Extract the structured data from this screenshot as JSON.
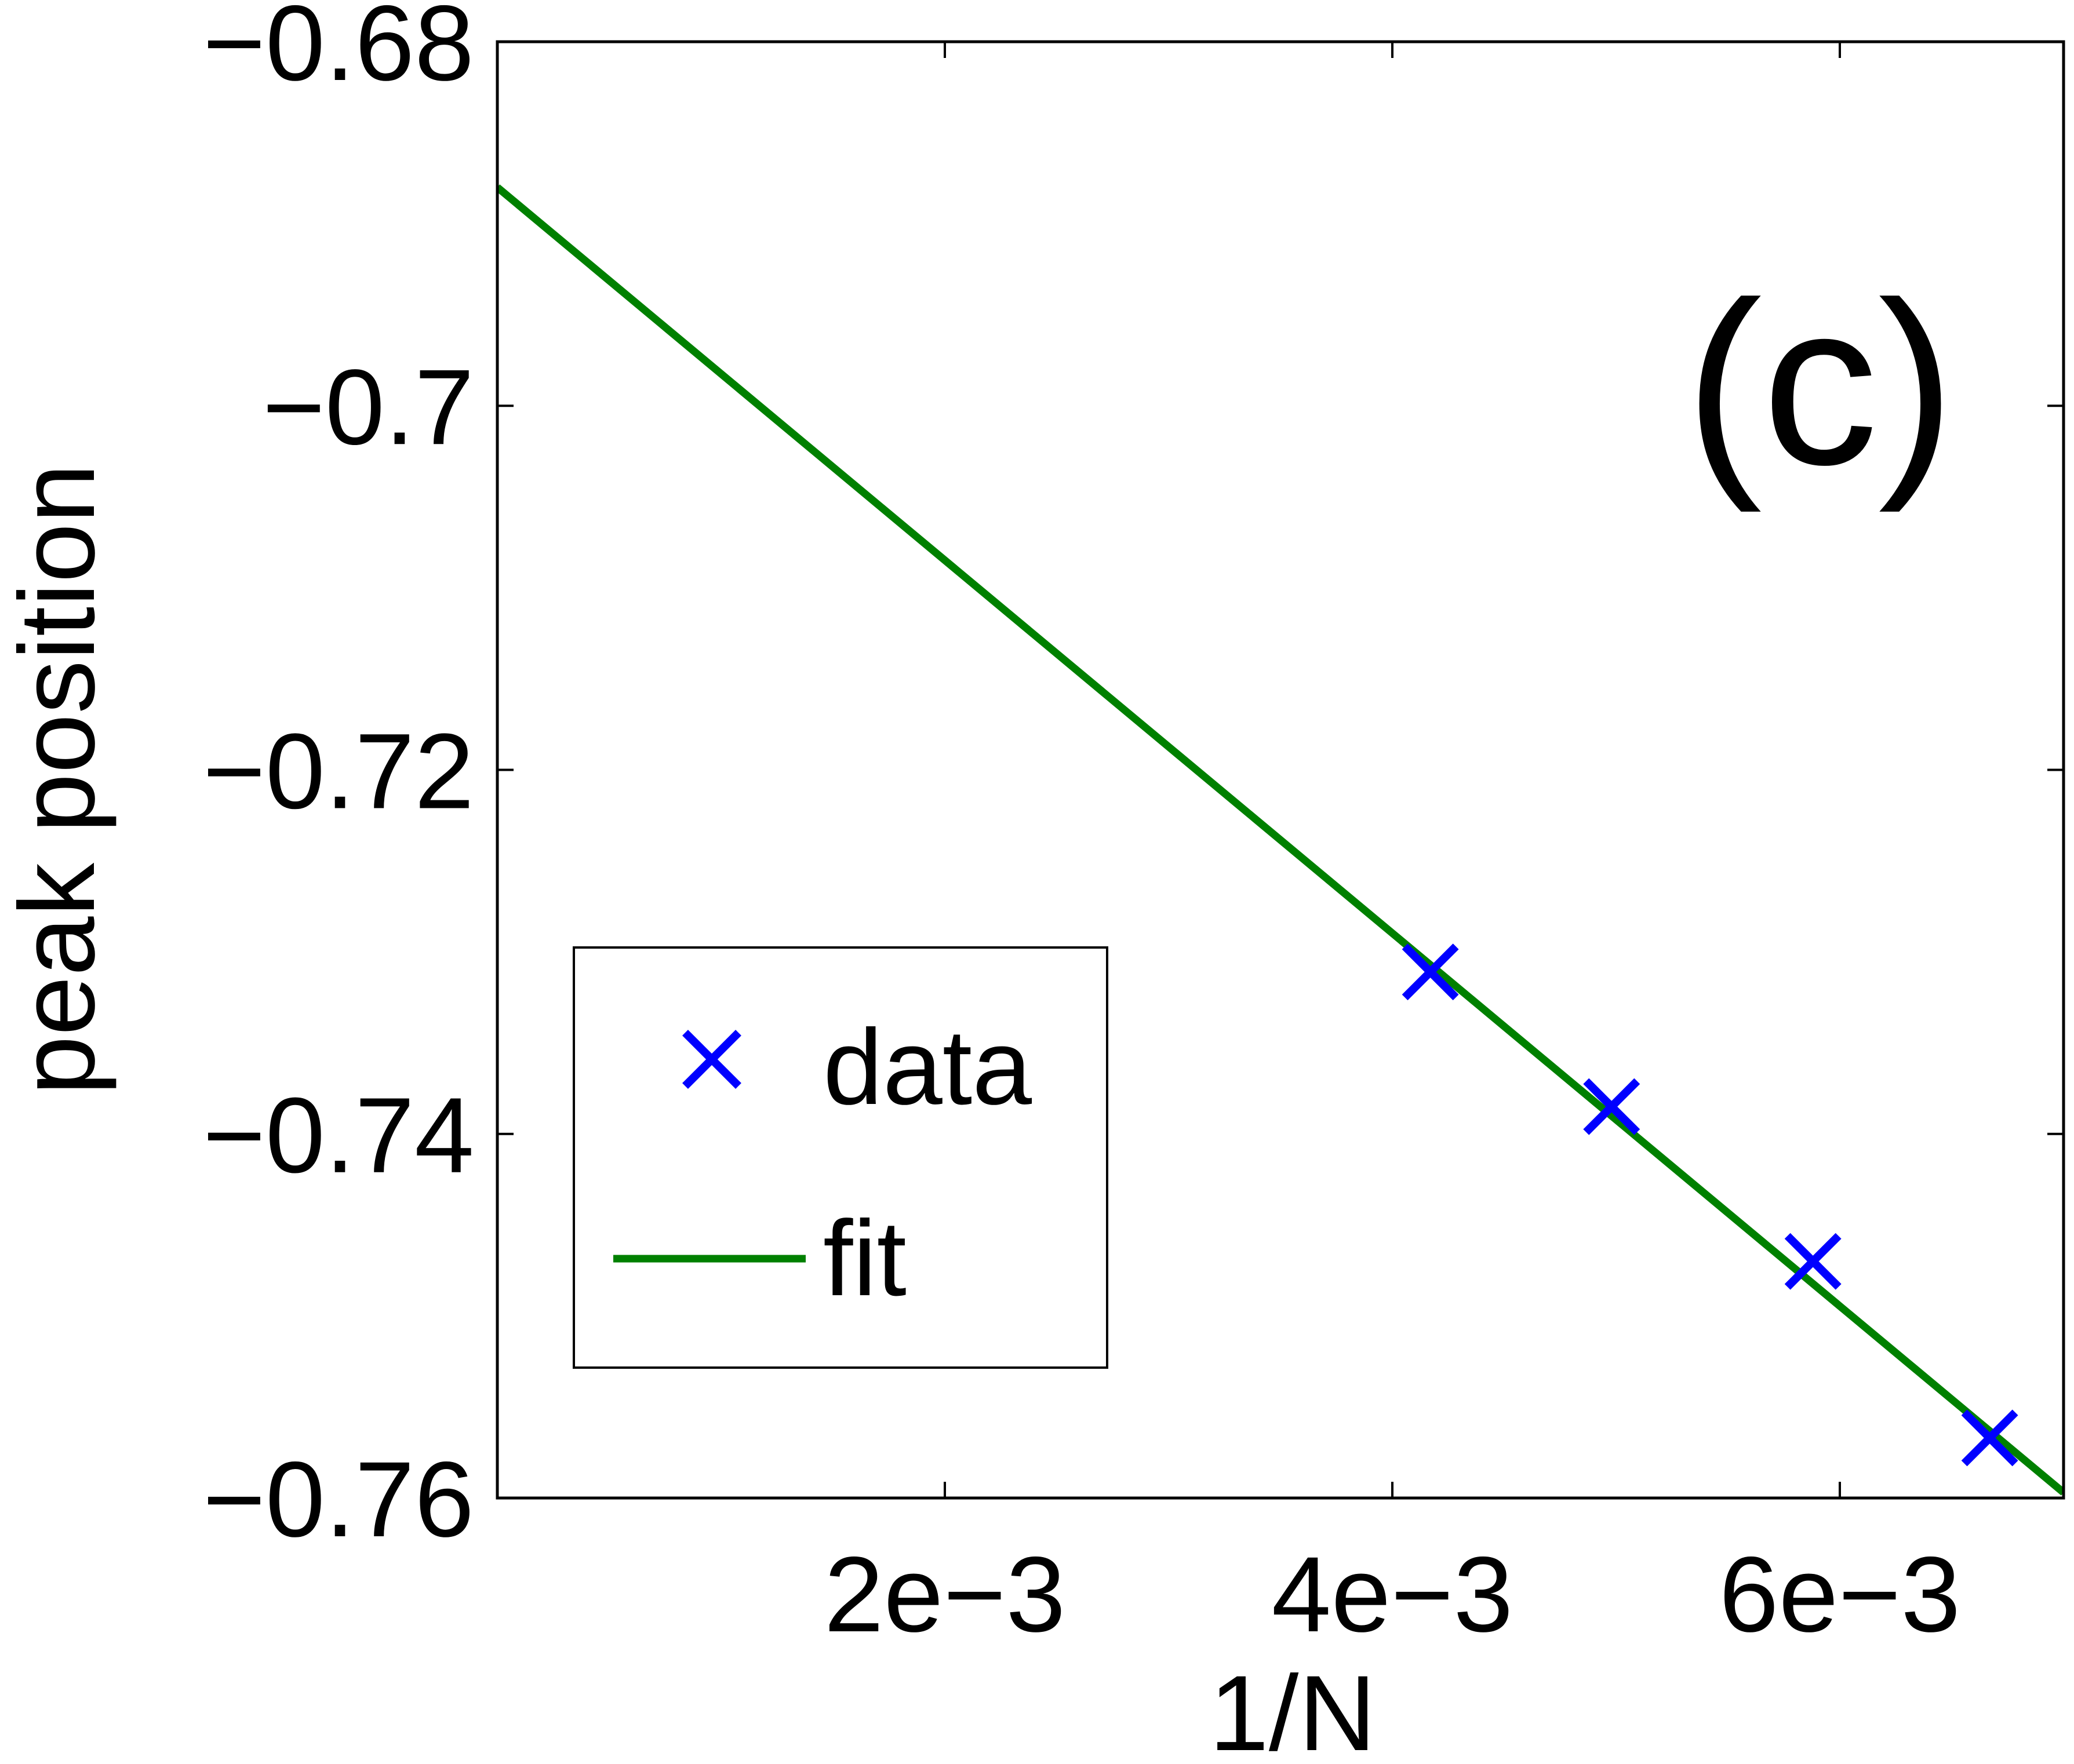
{
  "chart_data": {
    "type": "scatter",
    "panel_label": "(c)",
    "xlabel": "1/N",
    "ylabel": "peak position",
    "xlim": [
      0,
      0.007
    ],
    "ylim": [
      -0.76,
      -0.68
    ],
    "x_ticks": [
      0.002,
      0.004,
      0.006
    ],
    "x_tick_labels": [
      "2e−3",
      "4e−3",
      "6e−3"
    ],
    "y_ticks": [
      -0.76,
      -0.74,
      -0.72,
      -0.7,
      -0.68
    ],
    "y_tick_labels": [
      "−0.76",
      "−0.74",
      "−0.72",
      "−0.7",
      "−0.68"
    ],
    "grid": false,
    "legend_position": "lower-left",
    "series": [
      {
        "name": "data",
        "style": "markers",
        "marker": "x",
        "color": "#0000ff",
        "x": [
          0.00417,
          0.00498,
          0.00588,
          0.00667
        ],
        "y": [
          -0.7311,
          -0.7385,
          -0.747,
          -0.7567
        ]
      },
      {
        "name": "fit",
        "style": "line",
        "color": "#008000",
        "x": [
          0,
          0.007
        ],
        "y": [
          -0.688,
          -0.7597
        ]
      }
    ]
  }
}
